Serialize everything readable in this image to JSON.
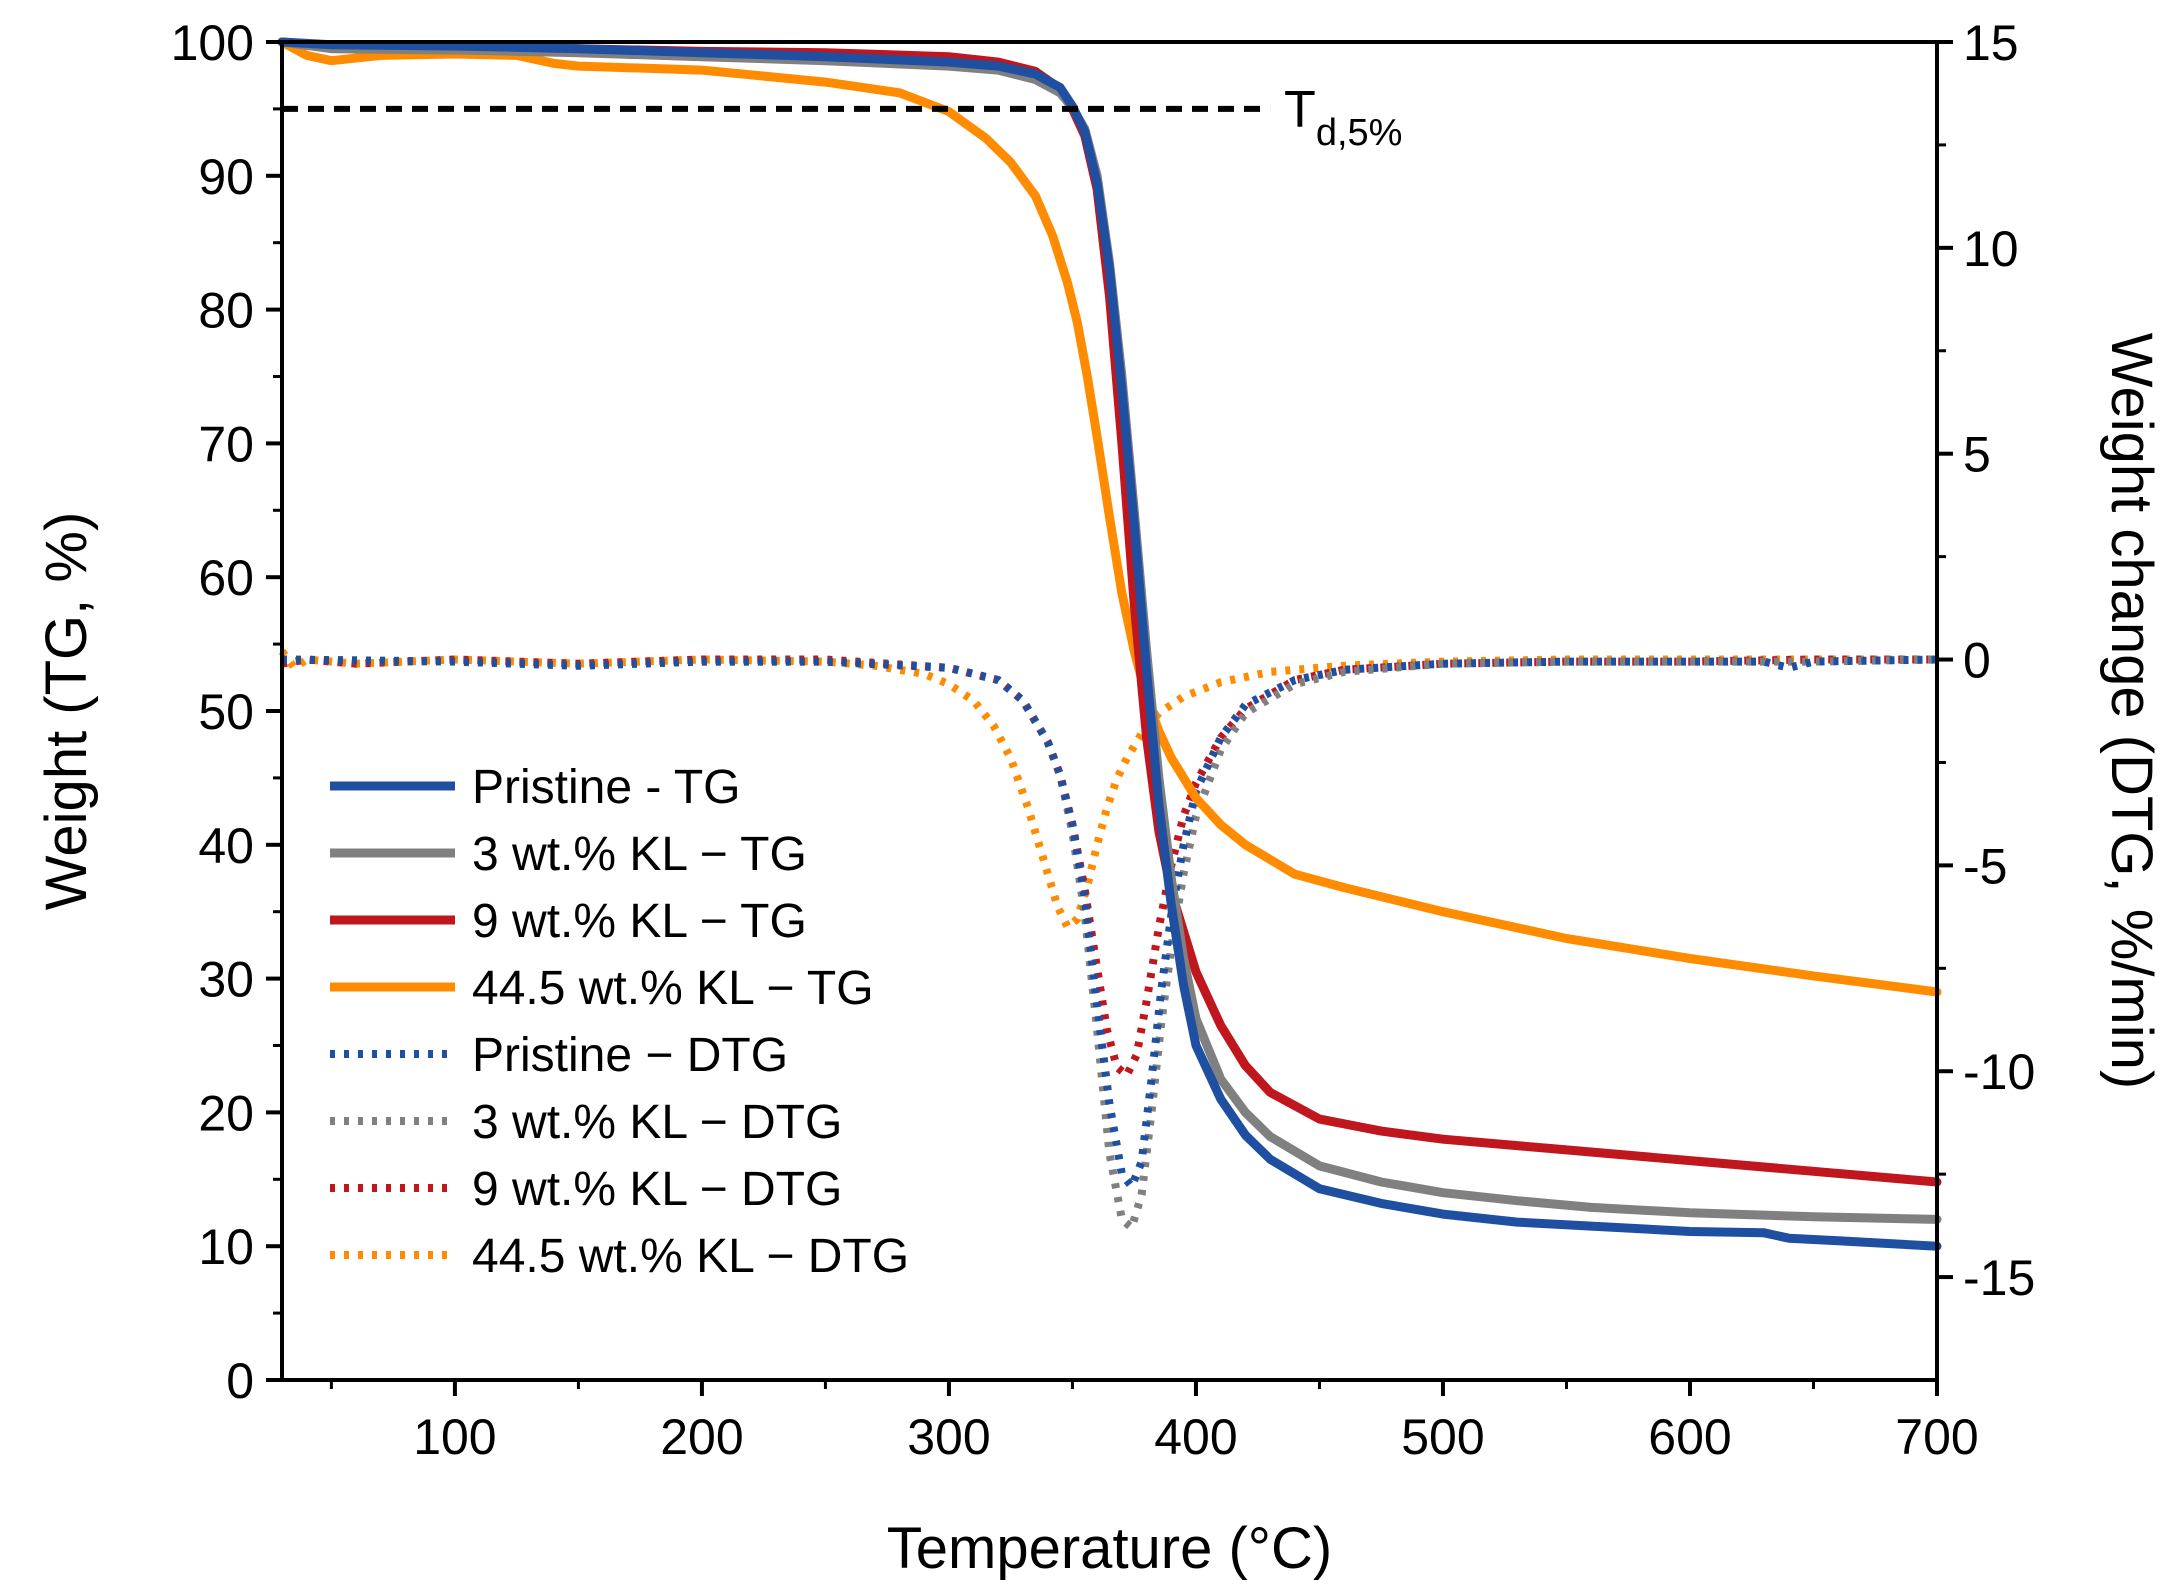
{
  "chart_data": {
    "type": "line",
    "title": "",
    "xlabel": "Temperature (°C)",
    "ylabel": "Weight (TG, %)",
    "y2label": "Weight change (DTG, %/min)",
    "xlim": [
      30,
      700
    ],
    "ylim": [
      0,
      100
    ],
    "y2lim": [
      -17.5,
      15
    ],
    "x_ticks": [
      "100",
      "200",
      "300",
      "400",
      "500",
      "600",
      "700"
    ],
    "y_ticks": [
      "0",
      "10",
      "20",
      "30",
      "40",
      "50",
      "60",
      "70",
      "80",
      "90",
      "100"
    ],
    "y2_ticks": [
      "-15",
      "-10",
      "-5",
      "0",
      "5",
      "10",
      "15"
    ],
    "grid": false,
    "legend_position": "lower-left",
    "annotation": {
      "text": "T",
      "subscript": "d,5%",
      "threshold_y": 95,
      "x_range": [
        30,
        430
      ]
    },
    "series": [
      {
        "name": "Pristine - TG",
        "axis": "left",
        "style": "solid",
        "color": "#1f4fa0",
        "x": [
          30,
          50,
          100,
          150,
          200,
          250,
          300,
          320,
          335,
          345,
          350,
          355,
          360,
          365,
          370,
          375,
          380,
          385,
          390,
          395,
          400,
          410,
          420,
          430,
          450,
          475,
          500,
          530,
          560,
          600,
          630,
          640,
          660,
          700
        ],
        "y": [
          100,
          99.8,
          99.7,
          99.5,
          99.2,
          98.9,
          98.5,
          98.2,
          97.6,
          96.6,
          95.2,
          93.3,
          89.5,
          83,
          74,
          64,
          53,
          43,
          35.5,
          29.5,
          25,
          21,
          18.3,
          16.5,
          14.3,
          13.2,
          12.4,
          11.8,
          11.5,
          11.1,
          11,
          10.6,
          10.4,
          10
        ]
      },
      {
        "name": "3 wt.% KL − TG",
        "axis": "left",
        "style": "solid",
        "color": "#808080",
        "x": [
          30,
          50,
          100,
          150,
          200,
          250,
          300,
          320,
          335,
          345,
          350,
          355,
          360,
          365,
          370,
          375,
          380,
          385,
          390,
          395,
          400,
          410,
          420,
          430,
          450,
          475,
          500,
          530,
          560,
          600,
          650,
          700
        ],
        "y": [
          100,
          99.5,
          99.4,
          99.2,
          98.9,
          98.6,
          98.2,
          97.9,
          97.2,
          96.2,
          95.1,
          93.5,
          90,
          83.5,
          75,
          65,
          54.5,
          45,
          37.5,
          31.5,
          27,
          22.5,
          20,
          18.2,
          16,
          14.8,
          14,
          13.4,
          12.9,
          12.5,
          12.2,
          12
        ]
      },
      {
        "name": "9 wt.% KL − TG",
        "axis": "left",
        "style": "solid",
        "color": "#c0161e",
        "x": [
          30,
          50,
          100,
          150,
          200,
          250,
          300,
          320,
          335,
          345,
          350,
          355,
          360,
          365,
          370,
          375,
          380,
          385,
          390,
          400,
          410,
          420,
          430,
          450,
          475,
          500,
          550,
          600,
          650,
          700
        ],
        "y": [
          100,
          99.7,
          99.6,
          99.5,
          99.3,
          99.2,
          98.9,
          98.5,
          97.8,
          96.5,
          95,
          93,
          89,
          81,
          70,
          58,
          48,
          41,
          36.5,
          30.5,
          26.5,
          23.5,
          21.5,
          19.5,
          18.6,
          18,
          17.2,
          16.4,
          15.6,
          14.8
        ]
      },
      {
        "name": "44.5 wt.% KL − TG",
        "axis": "left",
        "style": "solid",
        "color": "#ff8c00",
        "x": [
          30,
          40,
          50,
          70,
          100,
          125,
          140,
          150,
          200,
          250,
          280,
          300,
          315,
          325,
          335,
          342,
          348,
          352,
          356,
          360,
          365,
          370,
          375,
          380,
          385,
          390,
          400,
          410,
          420,
          440,
          460,
          500,
          550,
          600,
          650,
          700
        ],
        "y": [
          100,
          99,
          98.6,
          99,
          99.1,
          99,
          98.4,
          98.2,
          97.9,
          97,
          96.2,
          94.8,
          92.8,
          91,
          88.5,
          85.5,
          82,
          79,
          75,
          70.5,
          64.5,
          58.8,
          54.5,
          51,
          48.5,
          46.5,
          43.5,
          41.5,
          40,
          37.8,
          36.8,
          35,
          33,
          31.5,
          30.2,
          29
        ]
      },
      {
        "name": "Pristine − DTG",
        "axis": "right",
        "style": "dotted",
        "color": "#1f4fa0",
        "x": [
          30,
          100,
          150,
          200,
          250,
          300,
          320,
          330,
          340,
          345,
          350,
          355,
          360,
          365,
          370,
          374,
          378,
          382,
          386,
          390,
          395,
          400,
          410,
          420,
          440,
          460,
          500,
          550,
          600,
          630,
          640,
          650,
          700
        ],
        "y": [
          0,
          -0.05,
          -0.15,
          -0.05,
          -0.05,
          -0.2,
          -0.5,
          -1,
          -2,
          -2.8,
          -4,
          -5.8,
          -8.4,
          -10.8,
          -12.5,
          -12.8,
          -12.2,
          -10.2,
          -8,
          -6.2,
          -4.5,
          -3.2,
          -1.9,
          -1.1,
          -0.5,
          -0.25,
          -0.1,
          -0.05,
          -0.05,
          -0.05,
          -0.2,
          -0.05,
          0
        ]
      },
      {
        "name": "3 wt.% KL − DTG",
        "axis": "right",
        "style": "dotted",
        "color": "#808080",
        "x": [
          30,
          100,
          150,
          200,
          250,
          300,
          320,
          330,
          340,
          345,
          350,
          355,
          360,
          365,
          370,
          374,
          378,
          382,
          386,
          390,
          395,
          400,
          410,
          420,
          440,
          460,
          500,
          550,
          600,
          650,
          700
        ],
        "y": [
          0,
          -0.05,
          -0.15,
          -0.05,
          -0.05,
          -0.2,
          -0.5,
          -1,
          -2,
          -2.8,
          -4.2,
          -6.2,
          -9,
          -12,
          -13.6,
          -13.8,
          -13,
          -11,
          -8.8,
          -7,
          -5.2,
          -3.8,
          -2.2,
          -1.3,
          -0.6,
          -0.3,
          -0.1,
          -0.05,
          -0.05,
          -0.05,
          0
        ]
      },
      {
        "name": "9 wt.% KL − DTG",
        "axis": "right",
        "style": "dotted",
        "color": "#c0161e",
        "x": [
          30,
          40,
          60,
          100,
          150,
          200,
          250,
          300,
          320,
          330,
          340,
          345,
          350,
          355,
          360,
          364,
          368,
          372,
          376,
          380,
          385,
          390,
          395,
          400,
          410,
          420,
          440,
          460,
          500,
          550,
          600,
          650,
          700
        ],
        "y": [
          -0.1,
          0,
          -0.1,
          0,
          -0.1,
          0,
          0,
          -0.2,
          -0.5,
          -1,
          -2,
          -2.8,
          -4,
          -5.6,
          -7.5,
          -9,
          -9.9,
          -10.1,
          -9.6,
          -8.3,
          -6.5,
          -5,
          -3.8,
          -3,
          -1.9,
          -1.2,
          -0.5,
          -0.25,
          -0.1,
          -0.05,
          -0.05,
          0,
          0
        ]
      },
      {
        "name": "44.5 wt.% KL − DTG",
        "axis": "right",
        "style": "dotted",
        "color": "#ff8c00",
        "x": [
          30,
          35,
          40,
          60,
          100,
          150,
          200,
          250,
          270,
          290,
          300,
          310,
          318,
          325,
          332,
          338,
          344,
          348,
          352,
          356,
          360,
          364,
          368,
          372,
          378,
          385,
          395,
          410,
          430,
          460,
          500,
          550,
          600,
          650,
          700
        ],
        "y": [
          0.2,
          -0.2,
          0,
          -0.1,
          0,
          -0.1,
          0,
          -0.05,
          -0.15,
          -0.35,
          -0.6,
          -1,
          -1.6,
          -2.4,
          -3.6,
          -4.8,
          -6,
          -6.5,
          -6.3,
          -5.5,
          -4.5,
          -3.6,
          -2.9,
          -2.4,
          -1.8,
          -1.3,
          -0.9,
          -0.55,
          -0.3,
          -0.15,
          -0.05,
          0,
          0,
          0,
          0
        ]
      }
    ]
  }
}
